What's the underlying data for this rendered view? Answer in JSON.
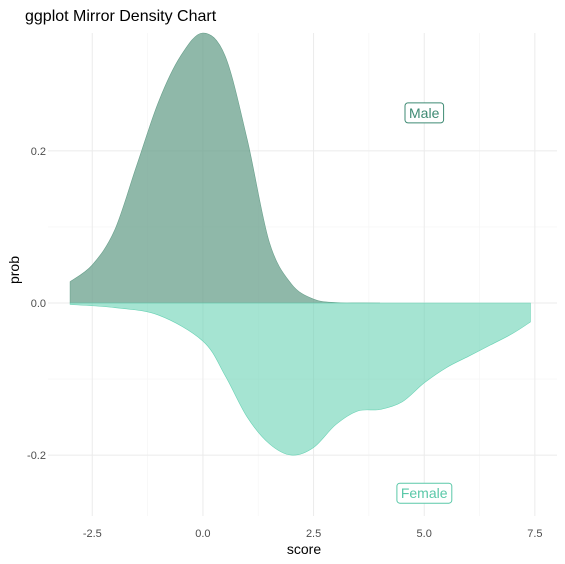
{
  "chart_data": {
    "type": "area",
    "title": "ggplot Mirror Density Chart",
    "xlabel": "score",
    "ylabel": "prob",
    "xlim": [
      -3.5,
      8.0
    ],
    "ylim": [
      -0.28,
      0.355
    ],
    "x_ticks": [
      -2.5,
      0.0,
      2.5,
      5.0,
      7.5
    ],
    "x_tick_labels": [
      "-2.5",
      "0.0",
      "2.5",
      "5.0",
      "7.5"
    ],
    "y_ticks": [
      -0.2,
      0.0,
      0.2
    ],
    "y_tick_labels": [
      "-0.2",
      "0.0",
      "0.2"
    ],
    "grid": true,
    "series": [
      {
        "name": "Male",
        "color": "#69a08c",
        "fill_opacity": 0.75,
        "x": [
          -3.0,
          -2.5,
          -2.0,
          -1.5,
          -1.0,
          -0.5,
          0.0,
          0.5,
          1.0,
          1.5,
          2.0,
          2.5,
          3.0,
          3.5,
          4.0
        ],
        "y": [
          0.028,
          0.05,
          0.095,
          0.18,
          0.265,
          0.325,
          0.355,
          0.325,
          0.215,
          0.08,
          0.025,
          0.005,
          0.0005,
          0.0001,
          0.0
        ]
      },
      {
        "name": "Female",
        "color": "#69d2b4",
        "fill_opacity": 0.6,
        "x": [
          -3.0,
          -2.0,
          -1.0,
          0.0,
          0.5,
          1.0,
          1.5,
          2.0,
          2.5,
          3.0,
          3.5,
          4.0,
          4.5,
          5.0,
          5.5,
          6.0,
          6.5,
          7.0,
          7.4
        ],
        "y": [
          -0.002,
          -0.006,
          -0.016,
          -0.05,
          -0.095,
          -0.15,
          -0.185,
          -0.2,
          -0.19,
          -0.16,
          -0.142,
          -0.14,
          -0.13,
          -0.105,
          -0.085,
          -0.07,
          -0.055,
          -0.04,
          -0.025
        ]
      }
    ],
    "annotations": [
      {
        "text": "Male",
        "x": 5.0,
        "y": 0.25,
        "color": "#3e8a73"
      },
      {
        "text": "Female",
        "x": 5.0,
        "y": -0.25,
        "color": "#5ac8a8"
      }
    ]
  }
}
